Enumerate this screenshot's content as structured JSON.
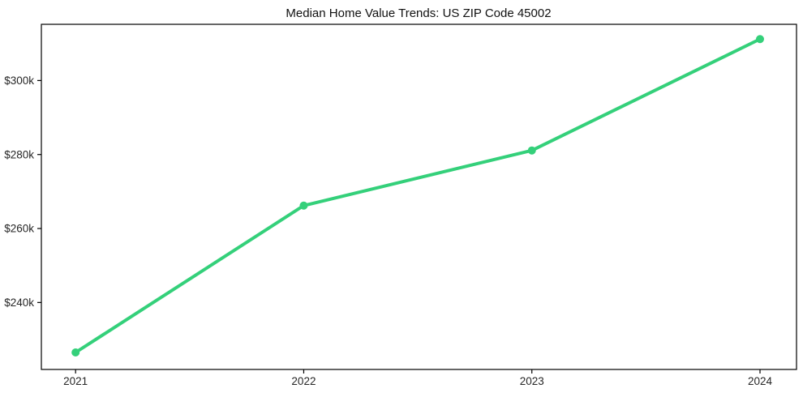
{
  "chart_data": {
    "type": "line",
    "title": "Median Home Value Trends: US ZIP Code 45002",
    "categories": [
      "2021",
      "2022",
      "2023",
      "2024"
    ],
    "series": [
      {
        "name": "Median Home Value",
        "values": [
          226500,
          266200,
          281100,
          311200
        ]
      }
    ],
    "y_ticks": [
      240000,
      260000,
      280000,
      300000
    ],
    "y_tick_labels": [
      "$240k",
      "$260k",
      "$280k",
      "$300k"
    ],
    "ylim": [
      221900,
      315200
    ],
    "xlabel": "",
    "ylabel": "",
    "grid": false,
    "legend": "none",
    "marker": "circle",
    "line_color": "#34d07a",
    "axis_color": "#000000",
    "tick_text_color": "#262626",
    "title_color": "#111111",
    "background_color": "#ffffff"
  }
}
